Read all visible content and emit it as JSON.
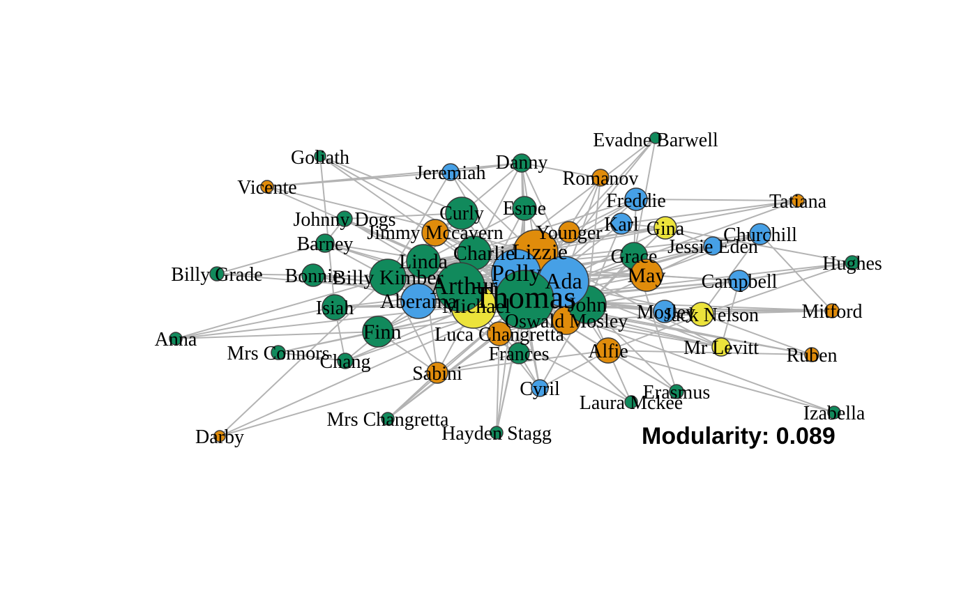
{
  "colors": {
    "green": "#118a5c",
    "blue": "#46a0e6",
    "orange": "#e08c0b",
    "yellow": "#ece33b",
    "edge": "#b3b3b3",
    "stroke": "#3a3a3a"
  },
  "modularity_text": "Modularity: 0.089",
  "nodes": [
    {
      "name": "Evadne Barwell",
      "group": "green"
    },
    {
      "name": "Goliath",
      "group": "green"
    },
    {
      "name": "Danny",
      "group": "green"
    },
    {
      "name": "Jeremiah",
      "group": "blue"
    },
    {
      "name": "Romanov",
      "group": "orange"
    },
    {
      "name": "Vicente",
      "group": "orange"
    },
    {
      "name": "Tatiana",
      "group": "orange"
    },
    {
      "name": "Freddie",
      "group": "blue"
    },
    {
      "name": "Esme",
      "group": "green"
    },
    {
      "name": "Curly",
      "group": "green"
    },
    {
      "name": "Johnny Dogs",
      "group": "green"
    },
    {
      "name": "Karl",
      "group": "blue"
    },
    {
      "name": "Gina",
      "group": "yellow"
    },
    {
      "name": "Churchill",
      "group": "blue"
    },
    {
      "name": "Jimmy Mccavern",
      "group": "orange"
    },
    {
      "name": "Younger",
      "group": "orange"
    },
    {
      "name": "Jessie Eden",
      "group": "blue"
    },
    {
      "name": "Barney",
      "group": "green"
    },
    {
      "name": "Charlie",
      "group": "green"
    },
    {
      "name": "Lizzie",
      "group": "orange"
    },
    {
      "name": "Grace",
      "group": "green"
    },
    {
      "name": "Hughes",
      "group": "green"
    },
    {
      "name": "Linda",
      "group": "green"
    },
    {
      "name": "Billy Grade",
      "group": "green"
    },
    {
      "name": "Bonnie",
      "group": "green"
    },
    {
      "name": "Billy Kimber",
      "group": "green"
    },
    {
      "name": "Polly",
      "group": "blue"
    },
    {
      "name": "May",
      "group": "orange"
    },
    {
      "name": "Campbell",
      "group": "blue"
    },
    {
      "name": "Ada",
      "group": "blue"
    },
    {
      "name": "Arthur",
      "group": "green"
    },
    {
      "name": "Thomas",
      "group": "green"
    },
    {
      "name": "John",
      "group": "green"
    },
    {
      "name": "Aberama",
      "group": "blue"
    },
    {
      "name": "Isiah",
      "group": "green"
    },
    {
      "name": "Michael",
      "group": "yellow"
    },
    {
      "name": "Mosley",
      "group": "blue"
    },
    {
      "name": "Jack Nelson",
      "group": "yellow"
    },
    {
      "name": "Mitford",
      "group": "orange"
    },
    {
      "name": "Oswald Mosley",
      "group": "orange"
    },
    {
      "name": "Finn",
      "group": "green"
    },
    {
      "name": "Luca Changretta",
      "group": "orange"
    },
    {
      "name": "Anna",
      "group": "green"
    },
    {
      "name": "Mrs Connors",
      "group": "green"
    },
    {
      "name": "Alfie",
      "group": "orange"
    },
    {
      "name": "Mr Levitt",
      "group": "yellow"
    },
    {
      "name": "Ruben",
      "group": "orange"
    },
    {
      "name": "Frances",
      "group": "green"
    },
    {
      "name": "Chang",
      "group": "green"
    },
    {
      "name": "Sabini",
      "group": "orange"
    },
    {
      "name": "Cyril",
      "group": "blue"
    },
    {
      "name": "Erasmus",
      "group": "green"
    },
    {
      "name": "Laura Mckee",
      "group": "green"
    },
    {
      "name": "Izabella",
      "group": "green"
    },
    {
      "name": "Mrs Changretta",
      "group": "green"
    },
    {
      "name": "Hayden Stagg",
      "group": "green"
    },
    {
      "name": "Darby",
      "group": "orange"
    }
  ]
}
